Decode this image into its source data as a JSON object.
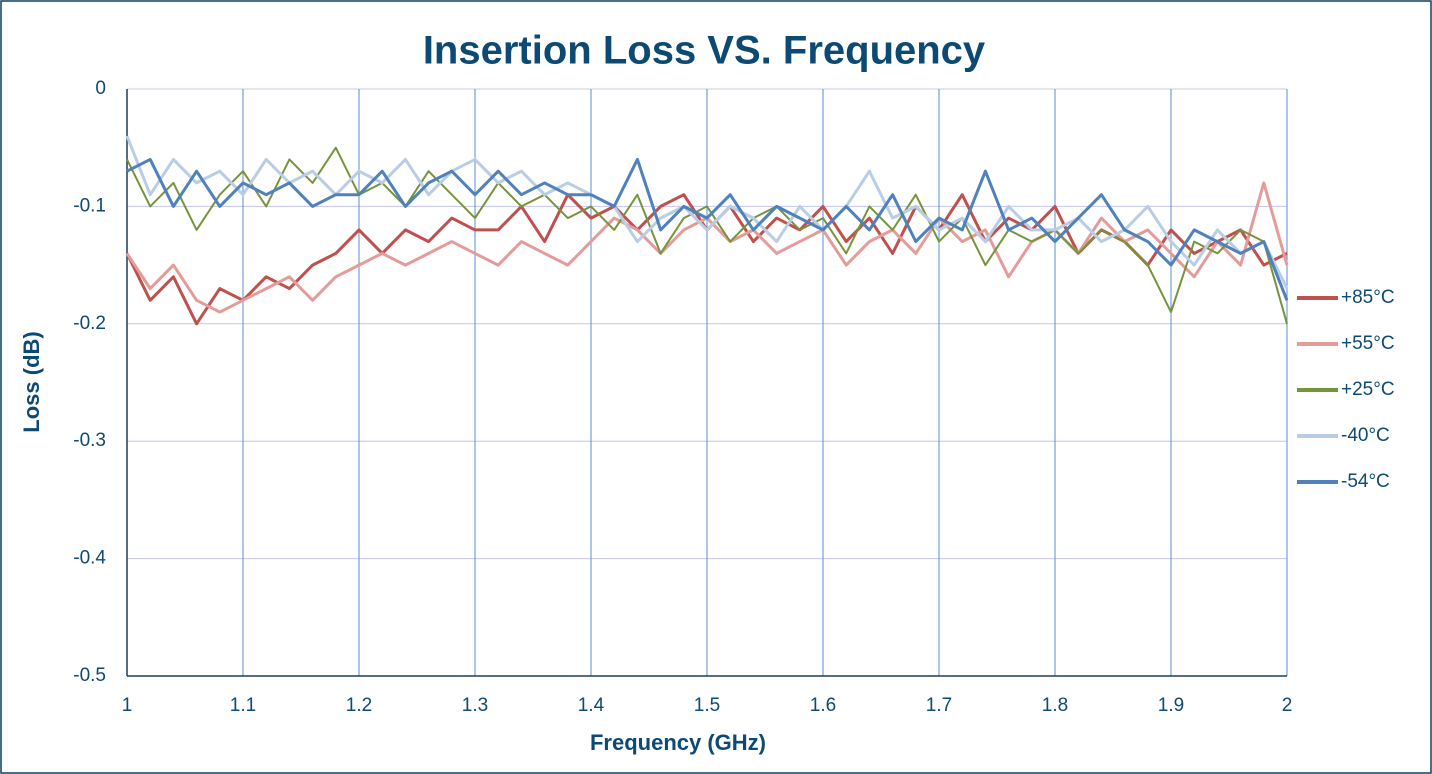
{
  "chart_data": {
    "type": "line",
    "title": "Insertion Loss VS. Frequency",
    "x_label": "Frequency (GHz)",
    "y_label": "Loss (dB)",
    "x": [
      1,
      1.02,
      1.04,
      1.06,
      1.08,
      1.1,
      1.12,
      1.14,
      1.16,
      1.18,
      1.2,
      1.22,
      1.24,
      1.26,
      1.28,
      1.3,
      1.32,
      1.34,
      1.36,
      1.38,
      1.4,
      1.42,
      1.44,
      1.46,
      1.48,
      1.5,
      1.52,
      1.54,
      1.56,
      1.58,
      1.6,
      1.62,
      1.64,
      1.66,
      1.68,
      1.7,
      1.72,
      1.74,
      1.76,
      1.78,
      1.8,
      1.82,
      1.84,
      1.86,
      1.88,
      1.9,
      1.92,
      1.94,
      1.96,
      1.98,
      2
    ],
    "series": [
      {
        "name": "+85°C",
        "color": "#c0504d",
        "width": 3,
        "values": [
          -0.14,
          -0.18,
          -0.16,
          -0.2,
          -0.17,
          -0.18,
          -0.16,
          -0.17,
          -0.15,
          -0.14,
          -0.12,
          -0.14,
          -0.12,
          -0.13,
          -0.11,
          -0.12,
          -0.12,
          -0.1,
          -0.13,
          -0.09,
          -0.11,
          -0.1,
          -0.12,
          -0.1,
          -0.09,
          -0.12,
          -0.1,
          -0.13,
          -0.11,
          -0.12,
          -0.1,
          -0.13,
          -0.11,
          -0.14,
          -0.1,
          -0.12,
          -0.09,
          -0.13,
          -0.11,
          -0.12,
          -0.1,
          -0.14,
          -0.12,
          -0.13,
          -0.15,
          -0.12,
          -0.14,
          -0.13,
          -0.12,
          -0.15,
          -0.14
        ]
      },
      {
        "name": "+55°C",
        "color": "#e39c9a",
        "width": 3,
        "values": [
          -0.14,
          -0.17,
          -0.15,
          -0.18,
          -0.19,
          -0.18,
          -0.17,
          -0.16,
          -0.18,
          -0.16,
          -0.15,
          -0.14,
          -0.15,
          -0.14,
          -0.13,
          -0.14,
          -0.15,
          -0.13,
          -0.14,
          -0.15,
          -0.13,
          -0.11,
          -0.12,
          -0.14,
          -0.12,
          -0.11,
          -0.13,
          -0.12,
          -0.14,
          -0.13,
          -0.12,
          -0.15,
          -0.13,
          -0.12,
          -0.14,
          -0.11,
          -0.13,
          -0.12,
          -0.16,
          -0.13,
          -0.12,
          -0.14,
          -0.11,
          -0.13,
          -0.12,
          -0.14,
          -0.16,
          -0.13,
          -0.15,
          -0.08,
          -0.15
        ]
      },
      {
        "name": "+25°C",
        "color": "#77933c",
        "width": 2,
        "values": [
          -0.06,
          -0.1,
          -0.08,
          -0.12,
          -0.09,
          -0.07,
          -0.1,
          -0.06,
          -0.08,
          -0.05,
          -0.09,
          -0.08,
          -0.1,
          -0.07,
          -0.09,
          -0.11,
          -0.08,
          -0.1,
          -0.09,
          -0.11,
          -0.1,
          -0.12,
          -0.09,
          -0.14,
          -0.11,
          -0.1,
          -0.13,
          -0.11,
          -0.1,
          -0.12,
          -0.11,
          -0.14,
          -0.1,
          -0.12,
          -0.09,
          -0.13,
          -0.11,
          -0.15,
          -0.12,
          -0.13,
          -0.12,
          -0.14,
          -0.12,
          -0.13,
          -0.15,
          -0.19,
          -0.13,
          -0.14,
          -0.12,
          -0.13,
          -0.2
        ]
      },
      {
        "name": "-40°C",
        "color": "#b9cde5",
        "width": 3,
        "values": [
          -0.04,
          -0.09,
          -0.06,
          -0.08,
          -0.07,
          -0.09,
          -0.06,
          -0.08,
          -0.07,
          -0.09,
          -0.07,
          -0.08,
          -0.06,
          -0.09,
          -0.07,
          -0.06,
          -0.08,
          -0.07,
          -0.09,
          -0.08,
          -0.09,
          -0.1,
          -0.13,
          -0.11,
          -0.1,
          -0.12,
          -0.1,
          -0.11,
          -0.13,
          -0.1,
          -0.12,
          -0.1,
          -0.07,
          -0.11,
          -0.1,
          -0.12,
          -0.11,
          -0.13,
          -0.1,
          -0.12,
          -0.12,
          -0.11,
          -0.13,
          -0.12,
          -0.1,
          -0.13,
          -0.15,
          -0.12,
          -0.14,
          -0.13,
          -0.17
        ]
      },
      {
        "name": "-54°C",
        "color": "#4f81bd",
        "width": 3,
        "values": [
          -0.07,
          -0.06,
          -0.1,
          -0.07,
          -0.1,
          -0.08,
          -0.09,
          -0.08,
          -0.1,
          -0.09,
          -0.09,
          -0.07,
          -0.1,
          -0.08,
          -0.07,
          -0.09,
          -0.07,
          -0.09,
          -0.08,
          -0.09,
          -0.09,
          -0.1,
          -0.06,
          -0.12,
          -0.1,
          -0.11,
          -0.09,
          -0.12,
          -0.1,
          -0.11,
          -0.12,
          -0.1,
          -0.12,
          -0.09,
          -0.13,
          -0.11,
          -0.12,
          -0.07,
          -0.12,
          -0.11,
          -0.13,
          -0.11,
          -0.09,
          -0.12,
          -0.13,
          -0.15,
          -0.12,
          -0.13,
          -0.14,
          -0.13,
          -0.18
        ]
      }
    ],
    "xlim": [
      1,
      2
    ],
    "xticks": [
      1,
      1.1,
      1.2,
      1.3,
      1.4,
      1.5,
      1.6,
      1.7,
      1.8,
      1.9,
      2
    ],
    "ylim": [
      -0.5,
      0
    ],
    "yticks": [
      0,
      -0.1,
      -0.2,
      -0.3,
      -0.4,
      -0.5
    ],
    "grid": true,
    "legend": "right"
  }
}
